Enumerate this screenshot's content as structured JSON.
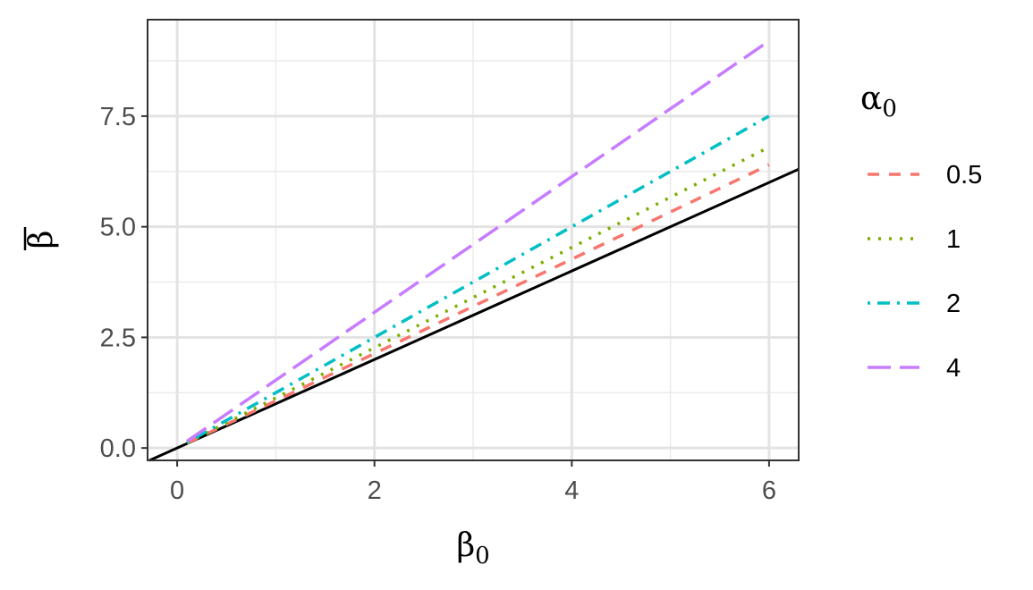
{
  "chart_data": {
    "type": "line",
    "xlabel": {
      "base": "β",
      "sub": "0"
    },
    "ylabel": {
      "base": "β",
      "bar": true
    },
    "xlim": [
      -0.3,
      6.3
    ],
    "ylim": [
      -0.28,
      9.68
    ],
    "x_ticks": [
      0,
      2,
      4,
      6
    ],
    "x_tick_labels": [
      "0",
      "2",
      "4",
      "6"
    ],
    "y_ticks": [
      0,
      2.5,
      5,
      7.5
    ],
    "y_tick_labels": [
      "0.0",
      "2.5",
      "5.0",
      "7.5"
    ],
    "grid": true,
    "legend": {
      "title": {
        "base": "α",
        "sub": "0"
      },
      "position": "right"
    },
    "reference_line": {
      "slope": 1,
      "intercept": 0,
      "color": "#000000",
      "dash": "solid"
    },
    "series": [
      {
        "name": "0.5",
        "color": "#F8766D",
        "dash": "dashed",
        "x": [
          0.1,
          6
        ],
        "y": [
          0.107,
          6.4
        ]
      },
      {
        "name": "1",
        "color": "#7CAE00",
        "dash": "dotted",
        "x": [
          0.1,
          6
        ],
        "y": [
          0.113,
          6.8
        ]
      },
      {
        "name": "2",
        "color": "#00BFC4",
        "dash": "dotdash",
        "x": [
          0.1,
          6
        ],
        "y": [
          0.125,
          7.5
        ]
      },
      {
        "name": "4",
        "color": "#C77CFF",
        "dash": "longdash",
        "x": [
          0.1,
          6
        ],
        "y": [
          0.153,
          9.2
        ]
      }
    ]
  }
}
